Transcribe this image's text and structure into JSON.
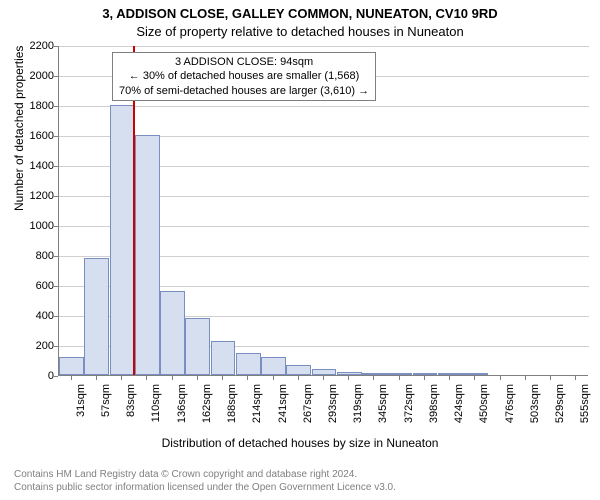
{
  "title_line1": "3, ADDISON CLOSE, GALLEY COMMON, NUNEATON, CV10 9RD",
  "title_line2": "Size of property relative to detached houses in Nuneaton",
  "ylabel": "Number of detached properties",
  "xlabel": "Distribution of detached houses by size in Nuneaton",
  "annotation": {
    "line1": "3 ADDISON CLOSE: 94sqm",
    "line2": "← 30% of detached houses are smaller (1,568)",
    "line3": "70% of semi-detached houses are larger (3,610) →"
  },
  "footer_line1": "Contains HM Land Registry data © Crown copyright and database right 2024.",
  "footer_line2": "Contains public sector information licensed under the Open Government Licence v3.0.",
  "chart": {
    "type": "histogram",
    "ylim": [
      0,
      2200
    ],
    "ytick_step": 200,
    "bar_fill": "#d6dff0",
    "bar_stroke": "#7a8fc0",
    "grid_color": "#d0d0d0",
    "axis_color": "#808080",
    "background_color": "#ffffff",
    "ref_line_color": "#cc0000",
    "ref_line_sqm": 94,
    "title_fontsize": 13,
    "label_fontsize": 12,
    "tick_fontsize": 11,
    "x_start": 31,
    "x_step": 26,
    "x_label_step": 26,
    "categories": [
      "31sqm",
      "57sqm",
      "83sqm",
      "110sqm",
      "136sqm",
      "162sqm",
      "188sqm",
      "214sqm",
      "241sqm",
      "267sqm",
      "293sqm",
      "319sqm",
      "345sqm",
      "372sqm",
      "398sqm",
      "424sqm",
      "450sqm",
      "476sqm",
      "503sqm",
      "529sqm",
      "555sqm"
    ],
    "values": [
      120,
      780,
      1800,
      1600,
      560,
      380,
      230,
      150,
      120,
      70,
      40,
      20,
      10,
      5,
      2,
      1,
      1,
      0,
      0,
      0,
      0
    ]
  }
}
